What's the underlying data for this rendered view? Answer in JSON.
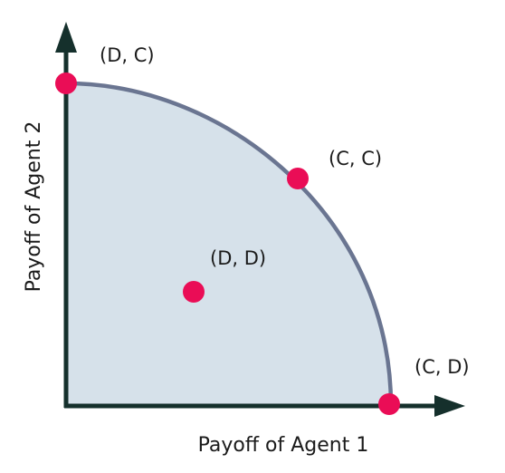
{
  "diagram": {
    "x_axis_label": "Payoff of Agent 1",
    "y_axis_label": "Payoff of Agent 2",
    "points": [
      {
        "id": "dc",
        "label": "(D, C)"
      },
      {
        "id": "cc",
        "label": "(C, C)"
      },
      {
        "id": "dd",
        "label": "(D, D)"
      },
      {
        "id": "cd",
        "label": "(C, D)"
      }
    ],
    "colors": {
      "region_fill": "#d6e1ea",
      "frontier_stroke": "#6a7591",
      "axis": "#15302c",
      "point": "#ea0d56",
      "text": "#1b1b1b"
    }
  }
}
